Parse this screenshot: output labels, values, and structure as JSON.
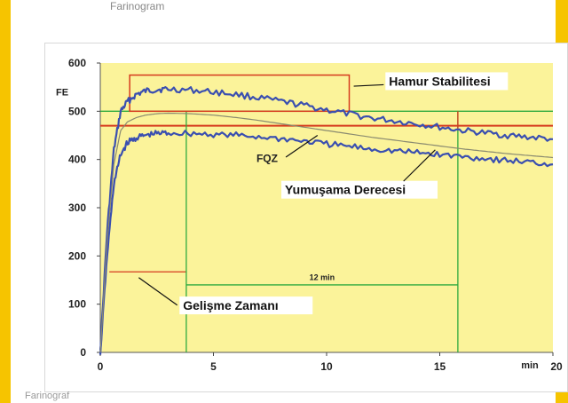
{
  "page": {
    "caption_top": "Farinogram",
    "caption_bottom": "Farinograf"
  },
  "colors": {
    "background": "#f6c400",
    "plot_bg": "#fbf39a",
    "curve_blue": "#3a4fb0",
    "green": "#2faa3f",
    "red": "#d63a1e",
    "gray_curve": "#8a8a70"
  },
  "chart_data": {
    "type": "line",
    "title": "",
    "xlabel": "min",
    "ylabel": "FE",
    "xlim": [
      0,
      20
    ],
    "ylim": [
      0,
      600
    ],
    "xticks": [
      0,
      5,
      10,
      15,
      20
    ],
    "yticks": [
      0,
      100,
      200,
      300,
      400,
      500,
      600
    ],
    "series": [
      {
        "role": "upper-band",
        "x": [
          0,
          0.3,
          0.6,
          0.9,
          1.2,
          1.6,
          2,
          2.5,
          3,
          4,
          5,
          6,
          7,
          8,
          9,
          10,
          11,
          12,
          13,
          14,
          15,
          16,
          17,
          18,
          19,
          20
        ],
        "y": [
          0,
          250,
          420,
          500,
          520,
          535,
          542,
          545,
          546,
          544,
          540,
          535,
          528,
          520,
          512,
          503,
          494,
          486,
          480,
          474,
          467,
          460,
          455,
          450,
          446,
          442
        ]
      },
      {
        "role": "lower-band",
        "x": [
          0,
          0.3,
          0.6,
          0.9,
          1.2,
          1.6,
          2,
          2.5,
          3,
          4,
          5,
          6,
          7,
          8,
          9,
          10,
          11,
          12,
          13,
          14,
          15,
          16,
          17,
          18,
          19,
          20
        ],
        "y": [
          0,
          200,
          350,
          410,
          435,
          445,
          450,
          454,
          455,
          454,
          452,
          450,
          447,
          443,
          438,
          432,
          427,
          422,
          418,
          414,
          410,
          406,
          402,
          398,
          394,
          390
        ]
      },
      {
        "role": "middle",
        "x": [
          0,
          0.3,
          0.6,
          0.9,
          1.2,
          1.6,
          2,
          2.5,
          3,
          4,
          5,
          6,
          7,
          8,
          9,
          10,
          11,
          12,
          13,
          14,
          15,
          16,
          17,
          18,
          19,
          20
        ],
        "y": [
          0,
          230,
          390,
          460,
          478,
          487,
          492,
          495,
          496,
          495,
          492,
          487,
          481,
          474,
          467,
          460,
          453,
          446,
          440,
          434,
          428,
          422,
          417,
          412,
          408,
          404
        ]
      }
    ],
    "reference_lines": [
      {
        "kind": "horizontal",
        "color": "green",
        "y": 500,
        "x_from": 0,
        "x_to": 20
      },
      {
        "kind": "horizontal",
        "color": "red",
        "y": 470,
        "x_from": 0,
        "x_to": 20
      },
      {
        "kind": "horizontal",
        "color": "green",
        "y": 140,
        "x_from": 3.8,
        "x_to": 15.8
      },
      {
        "kind": "horizontal",
        "color": "red",
        "y": 167,
        "x_from": 0.4,
        "x_to": 3.8
      },
      {
        "kind": "vertical",
        "color": "green",
        "x": 3.8,
        "y_from": 0,
        "y_to": 500
      },
      {
        "kind": "vertical",
        "color": "green",
        "x": 15.8,
        "y_from": 0,
        "y_to": 500
      },
      {
        "kind": "vertical",
        "color": "red",
        "x": 15.8,
        "y_from": 460,
        "y_to": 500
      }
    ],
    "stability_box": {
      "x_from": 1.3,
      "x_to": 11,
      "y_from": 500,
      "y_to": 575
    },
    "annotations": [
      {
        "text": "Hamur Stabilitesi",
        "style": "serif-boxed"
      },
      {
        "text": "Yumuşama Derecesi",
        "style": "serif-boxed"
      },
      {
        "text": "Gelişme Zamanı",
        "style": "serif-boxed"
      },
      {
        "text": "FQZ",
        "style": "plain"
      },
      {
        "text": "12 min",
        "style": "plain-small"
      }
    ]
  }
}
